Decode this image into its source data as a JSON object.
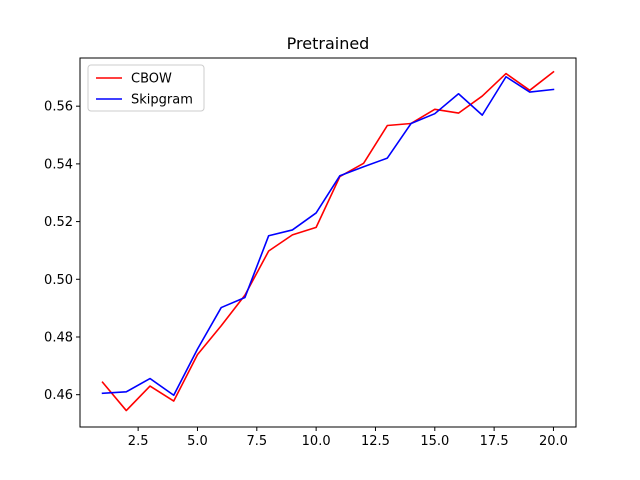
{
  "chart_data": {
    "type": "line",
    "title": "Pretrained",
    "xlabel": "",
    "ylabel": "",
    "xlim": [
      0.05,
      20.95
    ],
    "ylim": [
      0.4488,
      0.5767
    ],
    "xticks": [
      2.5,
      5.0,
      7.5,
      10.0,
      12.5,
      15.0,
      17.5,
      20.0
    ],
    "xtick_labels": [
      "2.5",
      "5.0",
      "7.5",
      "10.0",
      "12.5",
      "15.0",
      "17.5",
      "20.0"
    ],
    "yticks": [
      0.46,
      0.48,
      0.5,
      0.52,
      0.54,
      0.56
    ],
    "ytick_labels": [
      "0.46",
      "0.48",
      "0.50",
      "0.52",
      "0.54",
      "0.56"
    ],
    "grid": false,
    "legend_position": "upper-left",
    "x": [
      1,
      2,
      3,
      4,
      5,
      6,
      7,
      8,
      9,
      10,
      11,
      12,
      13,
      14,
      15,
      16,
      17,
      18,
      19,
      20
    ],
    "series": [
      {
        "name": "CBOW",
        "color": "#ff0000",
        "values": [
          0.4643,
          0.4545,
          0.463,
          0.4578,
          0.4739,
          0.4839,
          0.4945,
          0.5098,
          0.5154,
          0.518,
          0.5356,
          0.5402,
          0.5533,
          0.554,
          0.5589,
          0.5576,
          0.5635,
          0.5713,
          0.5655,
          0.5719
        ]
      },
      {
        "name": "Skipgram",
        "color": "#0000ff",
        "values": [
          0.4605,
          0.461,
          0.4656,
          0.4598,
          0.4758,
          0.4902,
          0.4937,
          0.5151,
          0.5171,
          0.523,
          0.5359,
          0.539,
          0.542,
          0.554,
          0.5574,
          0.5643,
          0.5569,
          0.5702,
          0.5649,
          0.5658
        ]
      }
    ]
  }
}
